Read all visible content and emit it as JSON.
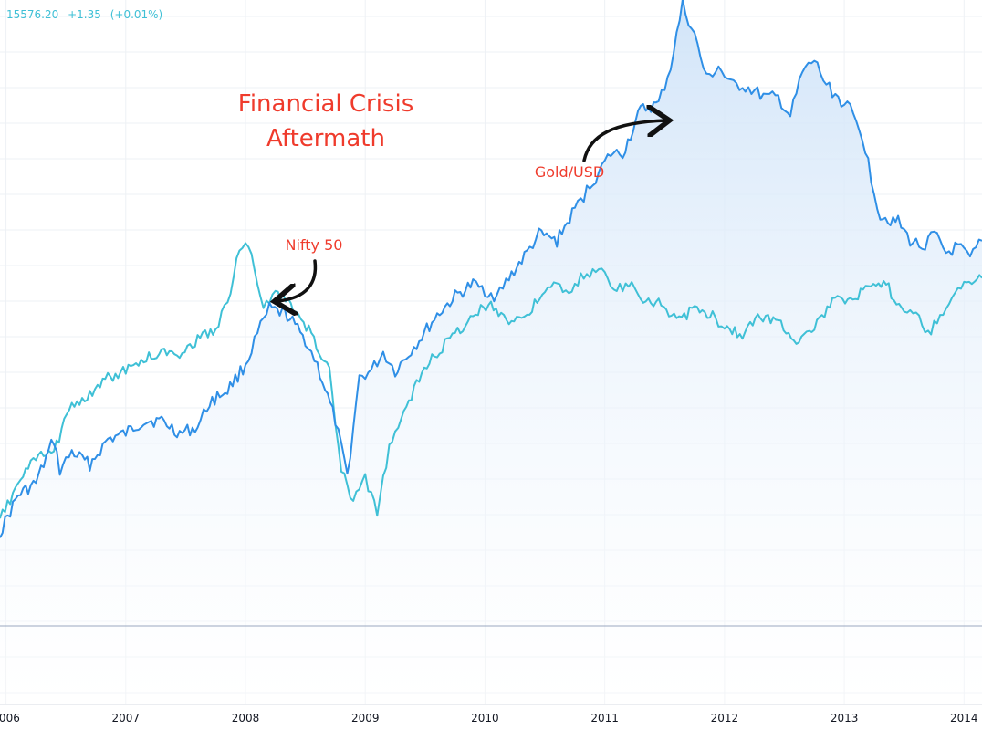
{
  "header": {
    "price": "15576.20",
    "change": "+1.35",
    "change_pct": "(+0.01%)"
  },
  "colors": {
    "gold_line": "#2f8fe6",
    "nifty_line": "#3fc0d6",
    "area_fill_top": "#cfe3f8",
    "area_fill_bottom": "#ffffff",
    "grid": "#eef1f5",
    "baseline": "#9aa8c0",
    "annotation": "#ef3b2c",
    "arrow": "#111111",
    "axis_text": "#131722"
  },
  "annotations": {
    "title_line1": "Financial Crisis",
    "title_line2": "Aftermath",
    "gold_label": "Gold/USD",
    "nifty_label": "Nifty 50"
  },
  "chart_data": {
    "type": "line",
    "x_ticks": [
      "2006",
      "2007",
      "2008",
      "2009",
      "2010",
      "2011",
      "2012",
      "2013",
      "2014"
    ],
    "xlim": [
      2005.95,
      2014.15
    ],
    "ylim": [
      0,
      100
    ],
    "grid": true,
    "series": [
      {
        "name": "Gold/USD",
        "x": [
          2005.95,
          2006.1,
          2006.25,
          2006.4,
          2006.45,
          2006.55,
          2006.7,
          2006.85,
          2007.0,
          2007.15,
          2007.3,
          2007.45,
          2007.6,
          2007.7,
          2007.85,
          2008.0,
          2008.1,
          2008.2,
          2008.35,
          2008.5,
          2008.6,
          2008.75,
          2008.85,
          2008.95,
          2009.05,
          2009.15,
          2009.25,
          2009.45,
          2009.6,
          2009.75,
          2009.9,
          2010.0,
          2010.1,
          2010.2,
          2010.35,
          2010.45,
          2010.6,
          2010.75,
          2010.85,
          2010.95,
          2011.05,
          2011.15,
          2011.3,
          2011.45,
          2011.55,
          2011.65,
          2011.75,
          2011.85,
          2011.95,
          2012.05,
          2012.15,
          2012.25,
          2012.35,
          2012.45,
          2012.55,
          2012.65,
          2012.75,
          2012.85,
          2012.95,
          2013.05,
          2013.15,
          2013.25,
          2013.3,
          2013.45,
          2013.55,
          2013.65,
          2013.75,
          2013.85,
          2013.95,
          2014.05,
          2014.15
        ],
        "y": [
          15,
          21,
          23,
          30,
          25,
          28,
          26,
          30,
          31,
          33,
          33,
          31,
          32,
          36,
          38,
          42,
          47,
          51,
          50,
          46,
          42,
          33,
          24,
          40,
          41,
          44,
          41,
          46,
          50,
          53,
          55,
          54,
          53,
          56,
          60,
          63,
          62,
          67,
          70,
          73,
          76,
          76,
          83,
          84,
          90,
          100,
          95,
          88,
          90,
          87,
          87,
          86,
          85,
          85,
          82,
          89,
          91,
          87,
          85,
          83,
          79,
          70,
          66,
          65,
          62,
          61,
          63,
          60,
          61,
          59,
          62
        ]
      },
      {
        "name": "Nifty 50",
        "x": [
          2005.95,
          2006.1,
          2006.25,
          2006.4,
          2006.55,
          2006.7,
          2006.85,
          2007.0,
          2007.15,
          2007.3,
          2007.45,
          2007.6,
          2007.75,
          2007.85,
          2007.95,
          2008.0,
          2008.05,
          2008.15,
          2008.25,
          2008.4,
          2008.55,
          2008.7,
          2008.8,
          2008.9,
          2009.0,
          2009.1,
          2009.2,
          2009.3,
          2009.45,
          2009.6,
          2009.75,
          2009.9,
          2010.05,
          2010.2,
          2010.35,
          2010.5,
          2010.6,
          2010.7,
          2010.8,
          2010.9,
          2011.0,
          2011.1,
          2011.2,
          2011.3,
          2011.45,
          2011.6,
          2011.75,
          2011.9,
          2012.0,
          2012.15,
          2012.3,
          2012.45,
          2012.6,
          2012.75,
          2012.9,
          2013.05,
          2013.2,
          2013.35,
          2013.5,
          2013.6,
          2013.7,
          2013.8,
          2013.9,
          2014.0,
          2014.15
        ],
        "y": [
          17,
          23,
          27,
          28,
          36,
          37,
          40,
          41,
          43,
          44,
          44,
          46,
          48,
          52,
          61,
          62,
          59,
          51,
          54,
          51,
          47,
          41,
          25,
          20,
          24,
          18,
          29,
          33,
          40,
          44,
          47,
          50,
          52,
          49,
          50,
          54,
          55,
          53,
          56,
          57,
          57,
          54,
          55,
          53,
          52,
          49,
          51,
          50,
          48,
          47,
          50,
          49,
          46,
          48,
          52,
          53,
          54,
          55,
          50,
          51,
          47,
          50,
          53,
          55,
          56
        ]
      }
    ]
  }
}
